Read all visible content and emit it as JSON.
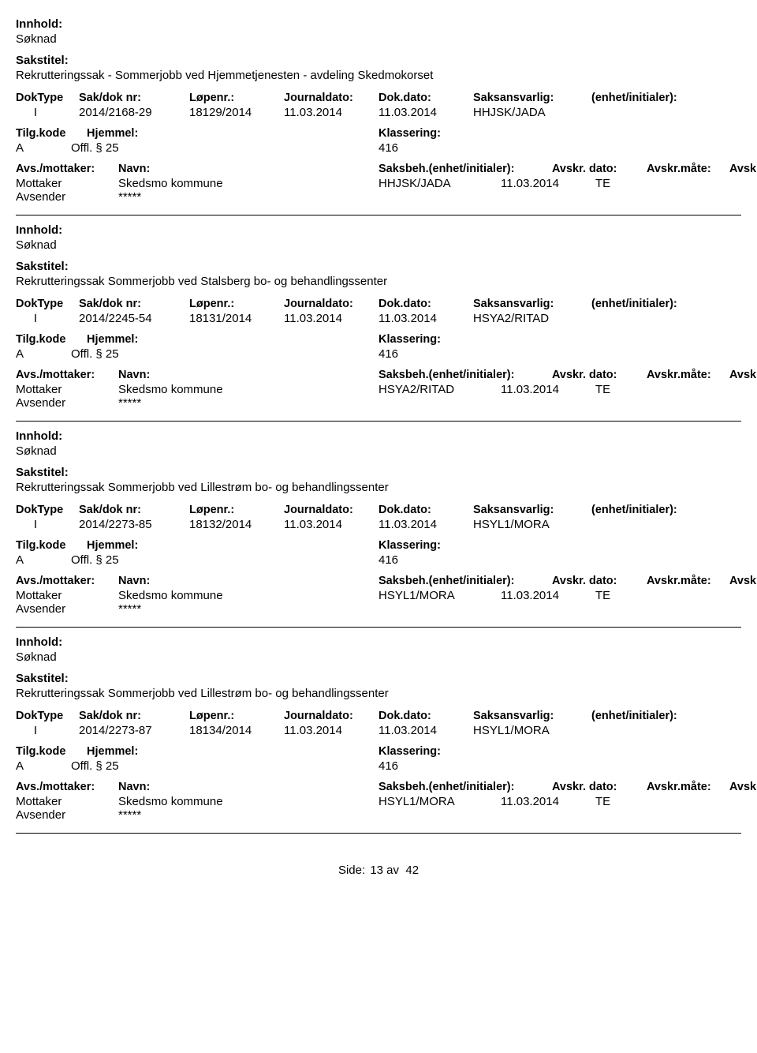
{
  "labels": {
    "innhold": "Innhold:",
    "sakstittel": "Sakstitel:",
    "doktype": "DokType",
    "saknr": "Sak/dok nr:",
    "lopenr": "Løpenr.:",
    "journaldato": "Journaldato:",
    "dokdato": "Dok.dato:",
    "saksansvarlig": "Saksansvarlig:",
    "enhet_initialer": "(enhet/initialer):",
    "tilgkode": "Tilg.kode",
    "hjemmel": "Hjemmel:",
    "klassering": "Klassering:",
    "avs_mottaker": "Avs./mottaker:",
    "navn": "Navn:",
    "saksbeh": "Saksbeh.(enhet/initialer):",
    "avskr_dato": "Avskr. dato:",
    "avskr_mate": "Avskr.måte:",
    "avskriv_lnr": "Avskriv lnr.:",
    "mottaker": "Mottaker",
    "avsender": "Avsender",
    "side": "Side:",
    "av": "av"
  },
  "footer": {
    "page": "13",
    "total": "42"
  },
  "records": [
    {
      "innhold": "Søknad",
      "sakstittel": "Rekrutteringssak - Sommerjobb ved Hjemmetjenesten - avdeling Skedmokorset",
      "doktype": "I",
      "saknr": "2014/2168-29",
      "lopenr": "18129/2014",
      "journaldato": "11.03.2014",
      "dokdato": "11.03.2014",
      "saksansvarlig": "HHJSK/JADA",
      "enhet": "",
      "tilgkode": "A",
      "hjemmel": "Offl. § 25",
      "klassering": "416",
      "parties": [
        {
          "role": "Mottaker",
          "name": "Skedsmo kommune",
          "saksbeh": "HHJSK/JADA",
          "dato": "11.03.2014",
          "mate": "TE"
        },
        {
          "role": "Avsender",
          "name": "*****",
          "saksbeh": "",
          "dato": "",
          "mate": ""
        }
      ]
    },
    {
      "innhold": "Søknad",
      "sakstittel": "Rekrutteringssak Sommerjobb ved Stalsberg bo- og behandlingssenter",
      "doktype": "I",
      "saknr": "2014/2245-54",
      "lopenr": "18131/2014",
      "journaldato": "11.03.2014",
      "dokdato": "11.03.2014",
      "saksansvarlig": "HSYA2/RITAD",
      "enhet": "",
      "tilgkode": "A",
      "hjemmel": "Offl. § 25",
      "klassering": "416",
      "parties": [
        {
          "role": "Mottaker",
          "name": "Skedsmo kommune",
          "saksbeh": "HSYA2/RITAD",
          "dato": "11.03.2014",
          "mate": "TE"
        },
        {
          "role": "Avsender",
          "name": "*****",
          "saksbeh": "",
          "dato": "",
          "mate": ""
        }
      ]
    },
    {
      "innhold": "Søknad",
      "sakstittel": "Rekrutteringssak Sommerjobb ved Lillestrøm bo- og behandlingssenter",
      "doktype": "I",
      "saknr": "2014/2273-85",
      "lopenr": "18132/2014",
      "journaldato": "11.03.2014",
      "dokdato": "11.03.2014",
      "saksansvarlig": "HSYL1/MORA",
      "enhet": "",
      "tilgkode": "A",
      "hjemmel": "Offl. § 25",
      "klassering": "416",
      "parties": [
        {
          "role": "Mottaker",
          "name": "Skedsmo kommune",
          "saksbeh": "HSYL1/MORA",
          "dato": "11.03.2014",
          "mate": "TE"
        },
        {
          "role": "Avsender",
          "name": "*****",
          "saksbeh": "",
          "dato": "",
          "mate": ""
        }
      ]
    },
    {
      "innhold": "Søknad",
      "sakstittel": "Rekrutteringssak Sommerjobb ved Lillestrøm bo- og behandlingssenter",
      "doktype": "I",
      "saknr": "2014/2273-87",
      "lopenr": "18134/2014",
      "journaldato": "11.03.2014",
      "dokdato": "11.03.2014",
      "saksansvarlig": "HSYL1/MORA",
      "enhet": "",
      "tilgkode": "A",
      "hjemmel": "Offl. § 25",
      "klassering": "416",
      "parties": [
        {
          "role": "Mottaker",
          "name": "Skedsmo kommune",
          "saksbeh": "HSYL1/MORA",
          "dato": "11.03.2014",
          "mate": "TE"
        },
        {
          "role": "Avsender",
          "name": "*****",
          "saksbeh": "",
          "dato": "",
          "mate": ""
        }
      ]
    }
  ]
}
